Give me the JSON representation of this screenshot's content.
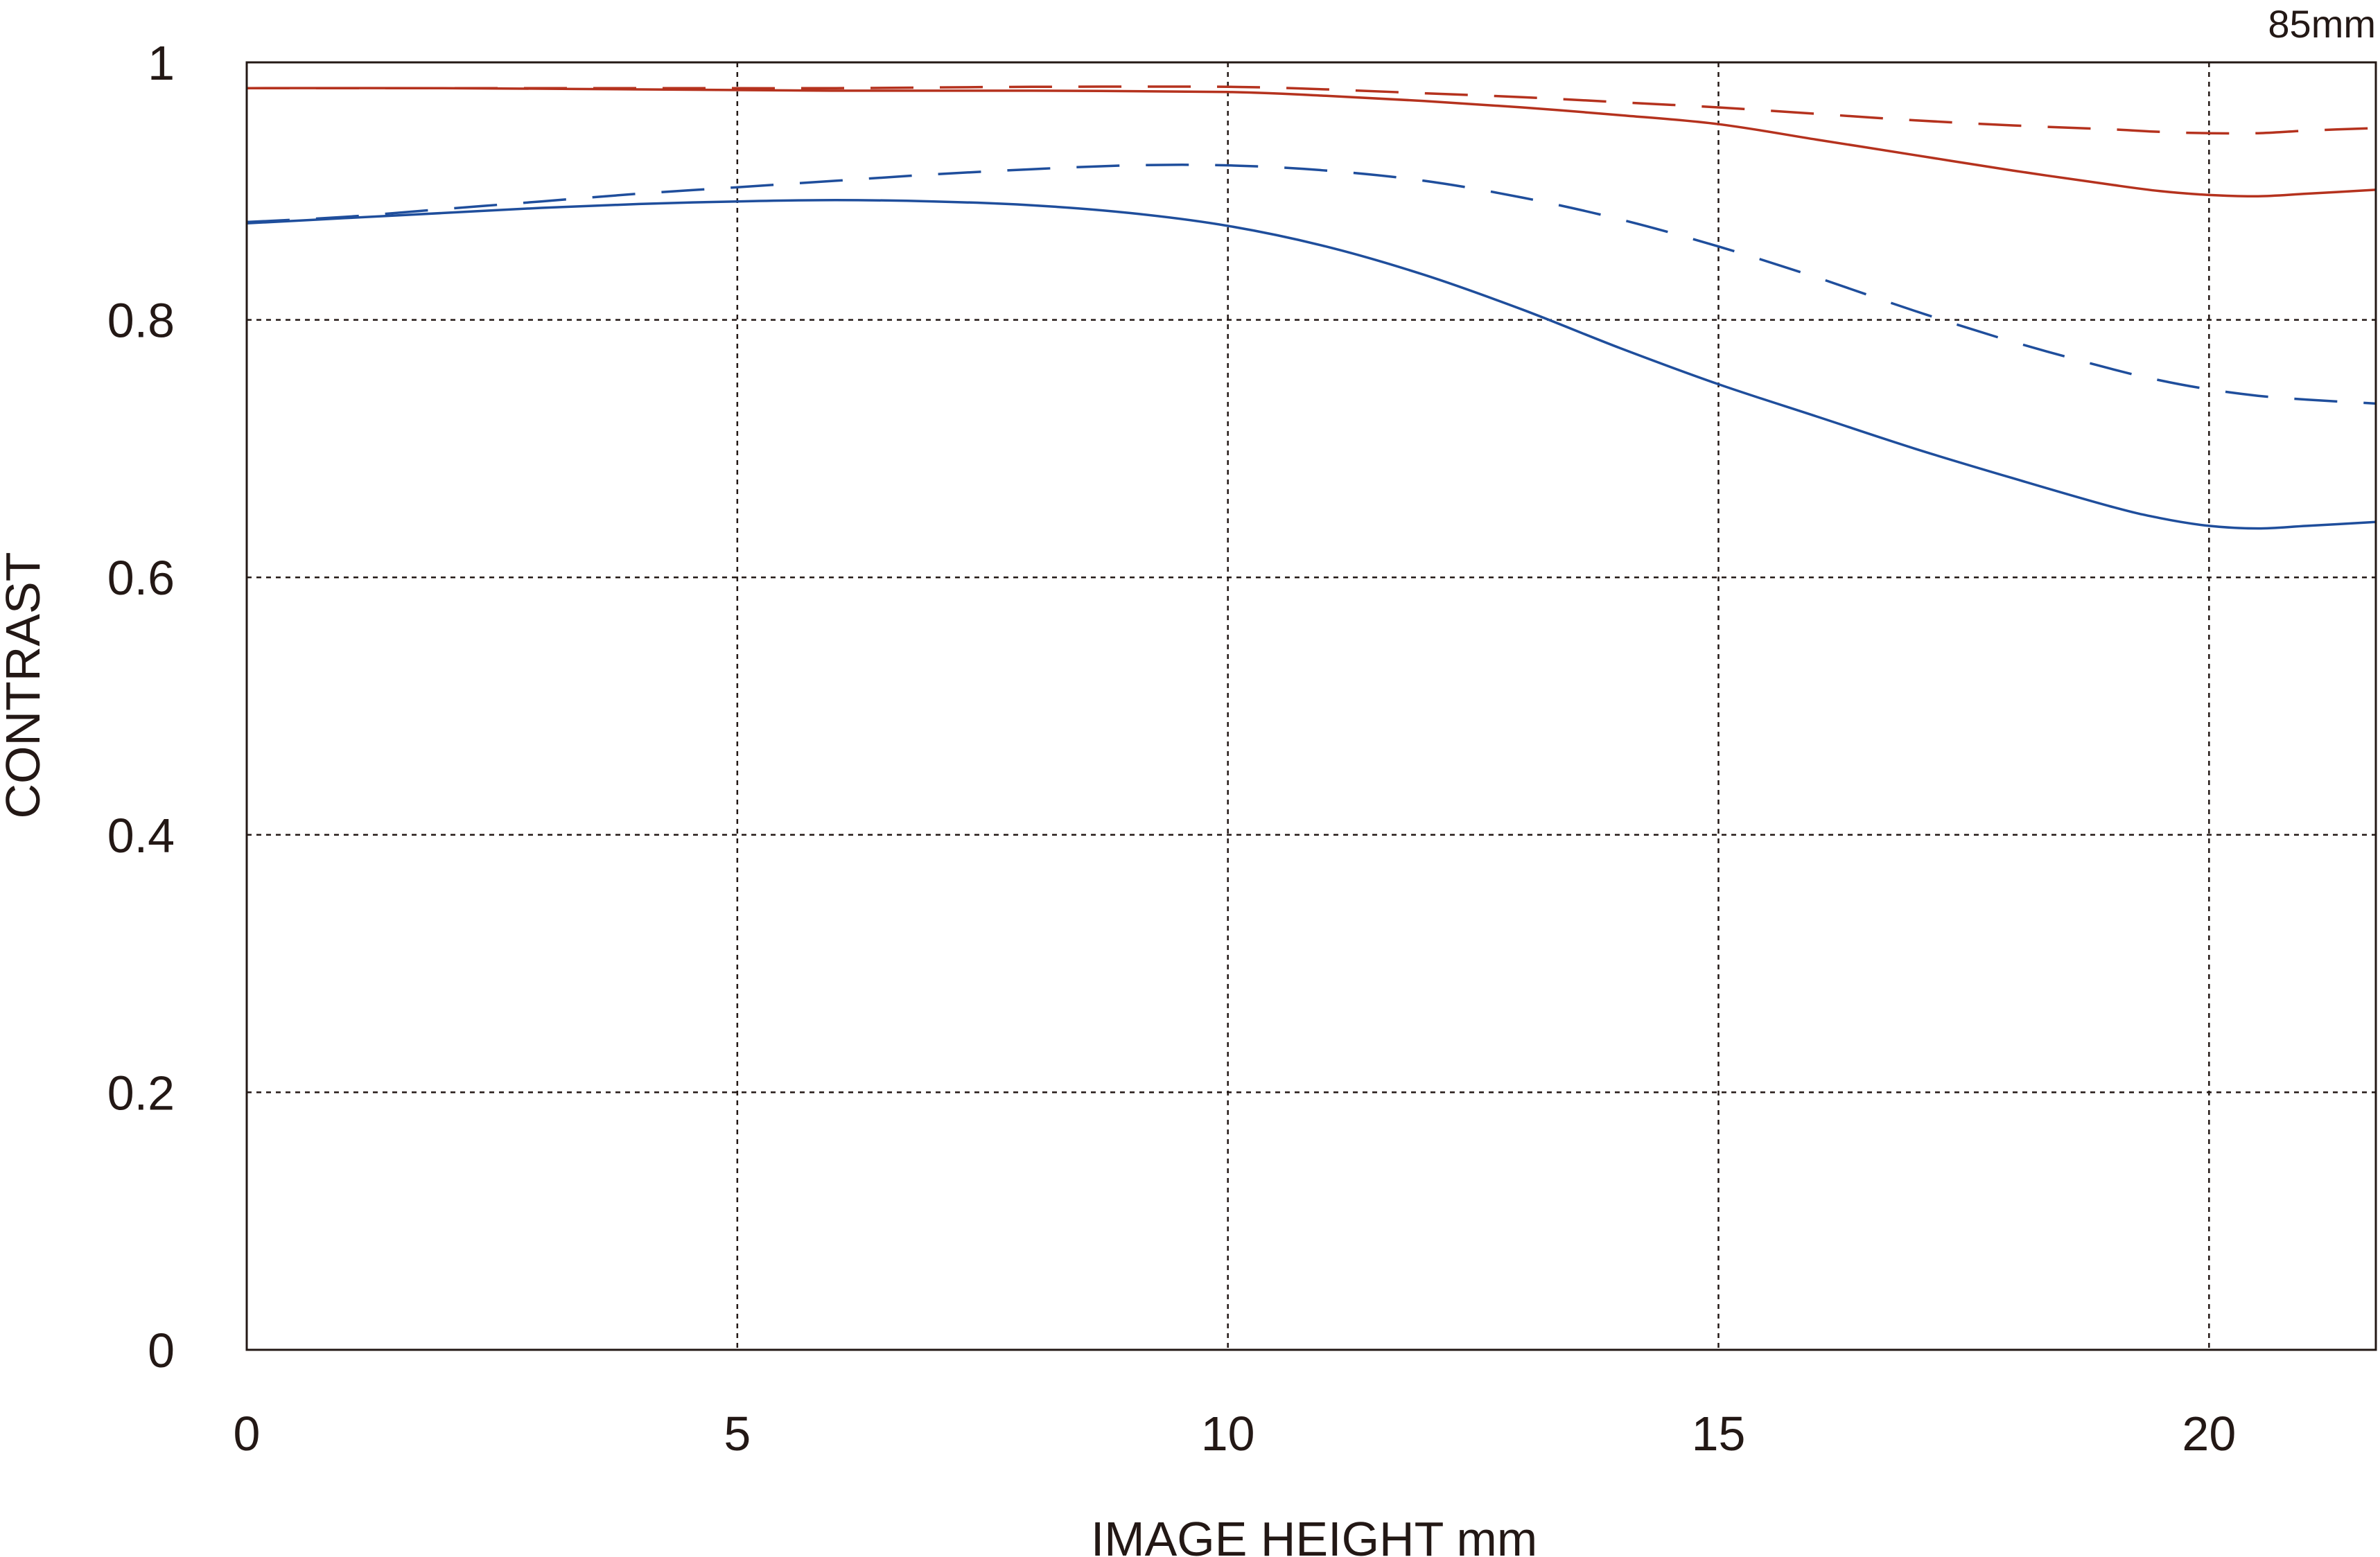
{
  "chart_data": {
    "type": "line",
    "title": "",
    "focal_length_label": "85mm",
    "xlabel": "IMAGE HEIGHT  mm",
    "ylabel": "CONTRAST",
    "xlim": [
      0,
      21.7
    ],
    "ylim": [
      0,
      1
    ],
    "xticks": [
      0,
      5,
      10,
      15,
      20
    ],
    "xtick_labels": [
      "0",
      "5",
      "10",
      "15",
      "20"
    ],
    "yticks": [
      0,
      0.2,
      0.4,
      0.6,
      0.8,
      1
    ],
    "ytick_labels": [
      "0",
      "0.2",
      "0.4",
      "0.6",
      "0.8",
      "1"
    ],
    "grid": true,
    "colors": {
      "red": "#b5321e",
      "blue": "#1f4e9c",
      "axis": "#231815",
      "grid": "#231815"
    },
    "series": [
      {
        "color": "#b5321e",
        "style": "solid",
        "x": [
          0,
          2,
          4,
          6,
          8,
          10,
          11,
          12,
          13,
          14,
          15,
          16,
          17,
          18,
          19,
          19.5,
          20,
          20.5,
          21,
          21.7
        ],
        "y": [
          0.98,
          0.98,
          0.979,
          0.978,
          0.978,
          0.977,
          0.974,
          0.97,
          0.965,
          0.959,
          0.952,
          0.94,
          0.928,
          0.916,
          0.905,
          0.9,
          0.897,
          0.896,
          0.898,
          0.901
        ]
      },
      {
        "color": "#b5321e",
        "style": "dashed",
        "x": [
          0,
          2,
          4,
          6,
          8,
          10,
          11,
          12,
          13,
          14,
          15,
          16,
          17,
          18,
          19,
          19.5,
          20,
          20.5,
          21,
          21.7
        ],
        "y": [
          0.98,
          0.98,
          0.98,
          0.98,
          0.981,
          0.981,
          0.979,
          0.976,
          0.973,
          0.969,
          0.965,
          0.96,
          0.955,
          0.951,
          0.948,
          0.946,
          0.945,
          0.945,
          0.947,
          0.949
        ]
      },
      {
        "color": "#1f4e9c",
        "style": "solid",
        "x": [
          0,
          1,
          2,
          3,
          4,
          5,
          6,
          7,
          8,
          9,
          10,
          11,
          12,
          13,
          14,
          15,
          16,
          17,
          18,
          19,
          19.5,
          20,
          20.5,
          21,
          21.7
        ],
        "y": [
          0.875,
          0.879,
          0.883,
          0.887,
          0.89,
          0.892,
          0.893,
          0.892,
          0.889,
          0.883,
          0.873,
          0.857,
          0.835,
          0.808,
          0.778,
          0.75,
          0.725,
          0.7,
          0.677,
          0.655,
          0.646,
          0.64,
          0.638,
          0.64,
          0.643
        ]
      },
      {
        "color": "#1f4e9c",
        "style": "dashed",
        "x": [
          0,
          1,
          2,
          3,
          4,
          5,
          6,
          7,
          8,
          9,
          10,
          11,
          12,
          13,
          14,
          15,
          16,
          17,
          18,
          19,
          19.5,
          20,
          20.5,
          21,
          21.7
        ],
        "y": [
          0.876,
          0.88,
          0.886,
          0.892,
          0.898,
          0.903,
          0.908,
          0.913,
          0.917,
          0.92,
          0.92,
          0.916,
          0.908,
          0.895,
          0.878,
          0.857,
          0.833,
          0.807,
          0.783,
          0.762,
          0.753,
          0.746,
          0.741,
          0.738,
          0.735
        ]
      }
    ]
  }
}
